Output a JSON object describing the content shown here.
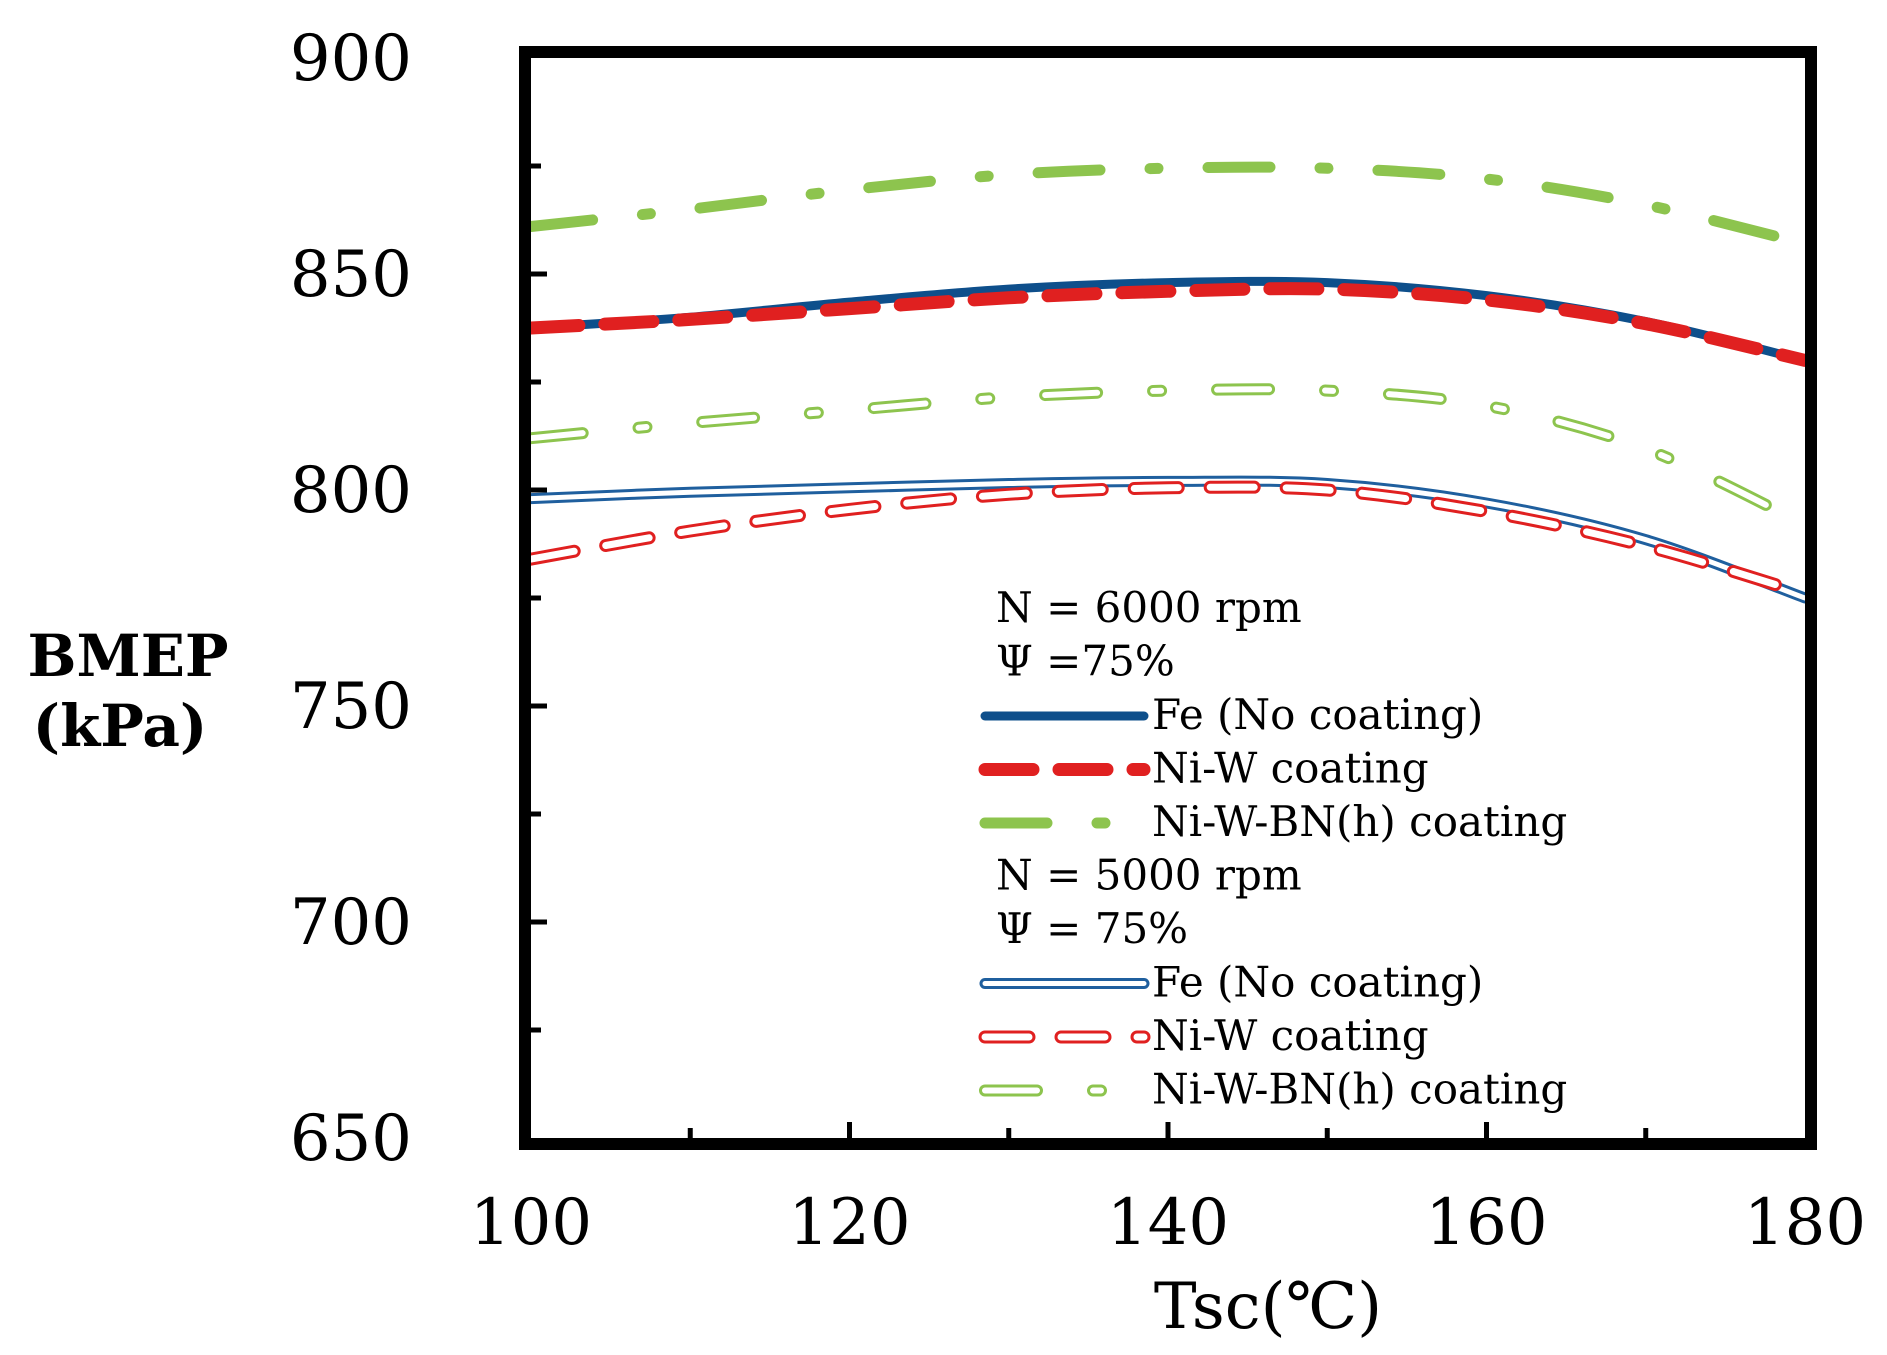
{
  "chart_data": {
    "type": "line",
    "title": "",
    "xlabel": "Tsc(℃)",
    "ylabel": [
      "BMEP",
      "(kPa)"
    ],
    "xlim": [
      100,
      180
    ],
    "ylim": [
      650,
      900
    ],
    "x_ticks": [
      100,
      120,
      140,
      160,
      180
    ],
    "y_ticks": [
      650,
      700,
      750,
      800,
      850,
      900
    ],
    "grid": false,
    "legend": {
      "position": "bottom-right",
      "groups": [
        {
          "header": [
            "N = 6000 rpm",
            "Ψ =75%"
          ],
          "series_indices": [
            0,
            1,
            2
          ]
        },
        {
          "header": [
            "N = 5000 rpm",
            "Ψ = 75%"
          ],
          "series_indices": [
            3,
            4,
            5
          ]
        }
      ]
    },
    "series": [
      {
        "name": "Fe (No coating)",
        "group": "N = 6000 rpm",
        "color": "#0e4f8b",
        "style": "solid",
        "x": [
          100,
          110,
          120,
          130,
          140,
          150,
          160,
          170,
          180
        ],
        "y": [
          837.5,
          840,
          843.5,
          846.5,
          848,
          848,
          845,
          839,
          830
        ]
      },
      {
        "name": "Ni-W coating",
        "group": "N = 6000 rpm",
        "color": "#e02020",
        "style": "dashed",
        "x": [
          100,
          110,
          120,
          130,
          140,
          150,
          160,
          170,
          180
        ],
        "y": [
          837.5,
          839.5,
          842,
          844.5,
          846,
          846.5,
          844,
          838.5,
          830
        ]
      },
      {
        "name": "Ni-W-BN(h) coating",
        "group": "N = 6000 rpm",
        "color": "#8dc44e",
        "style": "dashdot",
        "x": [
          100,
          110,
          120,
          130,
          140,
          150,
          160,
          170,
          180
        ],
        "y": [
          861,
          865,
          869.5,
          873,
          874.5,
          874.5,
          872,
          866,
          857
        ]
      },
      {
        "name": "Fe (No coating)",
        "group": "N = 5000 rpm",
        "color": "#1f5f9e",
        "style": "solid-hollow",
        "x": [
          100,
          110,
          120,
          130,
          140,
          150,
          160,
          170,
          180
        ],
        "y": [
          798,
          799.5,
          800.5,
          801.5,
          802,
          801.5,
          797,
          788.5,
          775
        ]
      },
      {
        "name": "Ni-W coating",
        "group": "N = 5000 rpm",
        "color": "#e02020",
        "style": "dashed-hollow",
        "x": [
          100,
          110,
          120,
          130,
          140,
          150,
          160,
          170,
          180
        ],
        "y": [
          784,
          790.5,
          795.5,
          799,
          800.5,
          800,
          795,
          787,
          776
        ]
      },
      {
        "name": "Ni-W-BN(h) coating",
        "group": "N = 5000 rpm",
        "color": "#8dc44e",
        "style": "dashdot-hollow",
        "x": [
          100,
          110,
          120,
          130,
          140,
          150,
          160,
          170,
          180
        ],
        "y": [
          812,
          815.5,
          818.5,
          821.5,
          823,
          823,
          819.5,
          809.5,
          792
        ]
      }
    ]
  }
}
